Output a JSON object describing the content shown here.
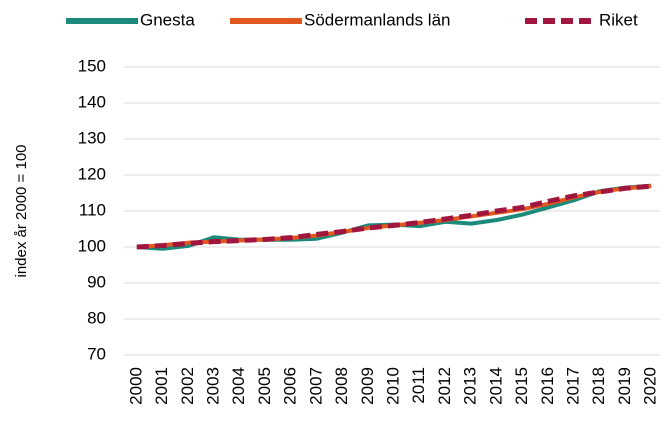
{
  "chart_data": {
    "type": "line",
    "y_axis_label": "index år 2000 = 100",
    "categories": [
      "2000",
      "2001",
      "2002",
      "2003",
      "2004",
      "2005",
      "2006",
      "2007",
      "2008",
      "2009",
      "2010",
      "2011",
      "2012",
      "2013",
      "2014",
      "2015",
      "2016",
      "2017",
      "2018",
      "2019",
      "2020"
    ],
    "series": [
      {
        "name": "Gnesta",
        "color": "#1b8a7b",
        "dashed": false,
        "values": [
          100,
          99.5,
          100.3,
          102.7,
          102,
          102,
          102,
          102.3,
          104,
          106,
          106.2,
          105.8,
          107,
          106.5,
          107.5,
          109,
          111,
          113,
          115.5,
          116.5,
          117
        ]
      },
      {
        "name": "Södermanlands län",
        "color": "#e0581e",
        "dashed": false,
        "values": [
          100,
          100.5,
          101.2,
          101.5,
          101.8,
          102.1,
          102.5,
          103.2,
          104.2,
          105.3,
          106,
          106.7,
          107.5,
          108.5,
          109.5,
          110.5,
          112,
          113.8,
          115.3,
          116.3,
          116.9
        ]
      },
      {
        "name": "Riket",
        "color": "#a0163f",
        "dashed": true,
        "values": [
          100,
          100.4,
          101,
          101.5,
          101.8,
          102.1,
          102.6,
          103.5,
          104.3,
          105.3,
          106,
          106.8,
          107.8,
          108.8,
          110,
          111,
          112.7,
          114.2,
          115.3,
          116.3,
          116.9
        ]
      }
    ],
    "ylim": [
      70,
      150
    ],
    "yticks": [
      70,
      80,
      90,
      100,
      110,
      120,
      130,
      140,
      150
    ],
    "grid": true,
    "legend": "top"
  }
}
